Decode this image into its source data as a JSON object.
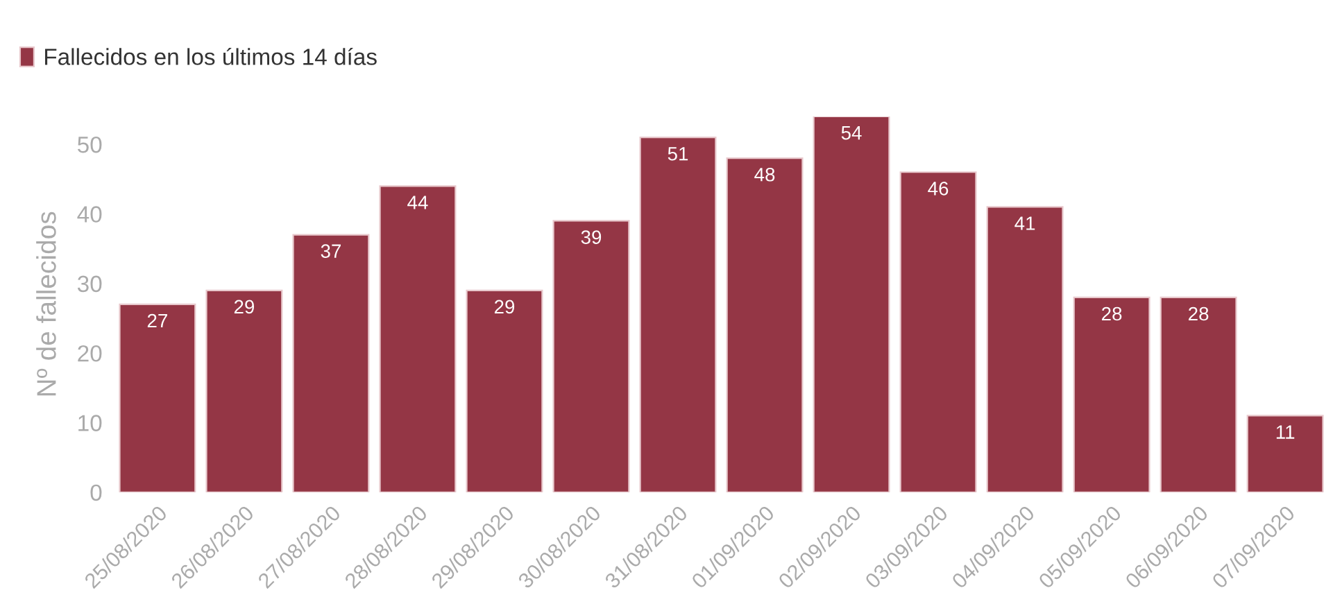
{
  "chart_data": {
    "type": "bar",
    "categories": [
      "25/08/2020",
      "26/08/2020",
      "27/08/2020",
      "28/08/2020",
      "29/08/2020",
      "30/08/2020",
      "31/08/2020",
      "01/09/2020",
      "02/09/2020",
      "03/09/2020",
      "04/09/2020",
      "05/09/2020",
      "06/09/2020",
      "07/09/2020"
    ],
    "series": [
      {
        "name": "Fallecidos en los últimos 14 días",
        "color": "#943645",
        "values": [
          27,
          29,
          37,
          44,
          29,
          39,
          51,
          48,
          54,
          46,
          41,
          28,
          28,
          11
        ]
      }
    ],
    "ylabel": "Nº de fallecidos",
    "ylim": [
      0,
      54
    ],
    "yticks": [
      0,
      10,
      20,
      30,
      40,
      50
    ],
    "grid": false,
    "legend": "top left",
    "data_labels": true
  }
}
